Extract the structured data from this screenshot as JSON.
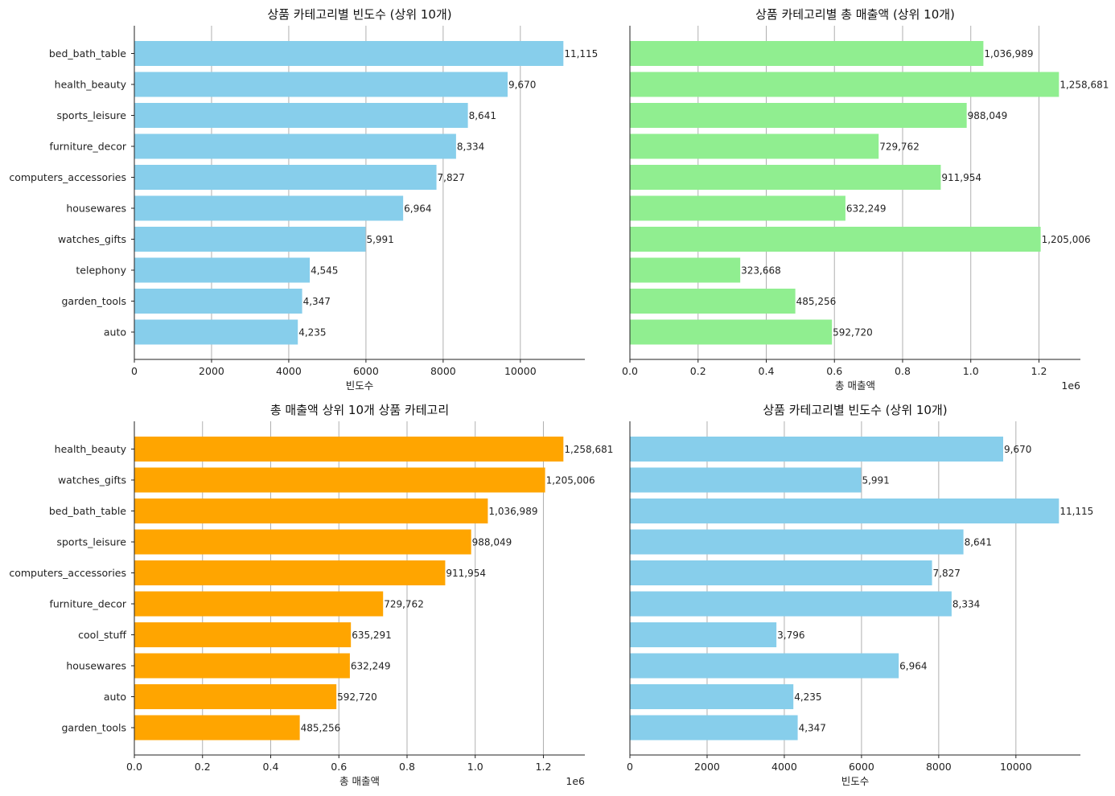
{
  "chart_data": [
    {
      "type": "bar",
      "orientation": "horizontal",
      "title": "상품 카테고리별 빈도수 (상위 10개)",
      "xlabel": "빈도수",
      "ylabel": "",
      "color": "#87CEEB",
      "xlim": [
        0,
        11671
      ],
      "xticks": [
        0,
        2000,
        4000,
        6000,
        8000,
        10000
      ],
      "tick_labels": [
        "0",
        "2000",
        "4000",
        "6000",
        "8000",
        "10000"
      ],
      "offset_text": "",
      "grid": "x",
      "categories": [
        "bed_bath_table",
        "health_beauty",
        "sports_leisure",
        "furniture_decor",
        "computers_accessories",
        "housewares",
        "watches_gifts",
        "telephony",
        "garden_tools",
        "auto"
      ],
      "values": [
        11115,
        9670,
        8641,
        8334,
        7827,
        6964,
        5991,
        4545,
        4347,
        4235
      ],
      "value_labels": [
        "11,115",
        "9,670",
        "8,641",
        "8,334",
        "7,827",
        "6,964",
        "5,991",
        "4,545",
        "4,347",
        "4,235"
      ],
      "show_category_labels": true
    },
    {
      "type": "bar",
      "orientation": "horizontal",
      "title": "상품 카테고리별 총 매출액 (상위 10개)",
      "xlabel": "총 매출액",
      "ylabel": "",
      "color": "#90EE90",
      "xlim": [
        0,
        1321615
      ],
      "xticks": [
        0,
        200000,
        400000,
        600000,
        800000,
        1000000,
        1200000
      ],
      "tick_labels": [
        "0.0",
        "0.2",
        "0.4",
        "0.6",
        "0.8",
        "1.0",
        "1.2"
      ],
      "offset_text": "1e6",
      "grid": "x",
      "categories": [
        "bed_bath_table",
        "health_beauty",
        "sports_leisure",
        "furniture_decor",
        "computers_accessories",
        "housewares",
        "watches_gifts",
        "telephony",
        "garden_tools",
        "auto"
      ],
      "values": [
        1036989,
        1258681,
        988049,
        729762,
        911954,
        632249,
        1205006,
        323668,
        485256,
        592720
      ],
      "value_labels": [
        "1,036,989",
        "1,258,681",
        "988,049",
        "729,762",
        "911,954",
        "632,249",
        "1,205,006",
        "323,668",
        "485,256",
        "592,720"
      ],
      "show_category_labels": false
    },
    {
      "type": "bar",
      "orientation": "horizontal",
      "title": "총 매출액 상위 10개 상품 카테고리",
      "xlabel": "총 매출액",
      "ylabel": "",
      "color": "#FFA500",
      "xlim": [
        0,
        1321615
      ],
      "xticks": [
        0,
        200000,
        400000,
        600000,
        800000,
        1000000,
        1200000
      ],
      "tick_labels": [
        "0.0",
        "0.2",
        "0.4",
        "0.6",
        "0.8",
        "1.0",
        "1.2"
      ],
      "offset_text": "1e6",
      "grid": "x",
      "categories": [
        "health_beauty",
        "watches_gifts",
        "bed_bath_table",
        "sports_leisure",
        "computers_accessories",
        "furniture_decor",
        "cool_stuff",
        "housewares",
        "auto",
        "garden_tools"
      ],
      "values": [
        1258681,
        1205006,
        1036989,
        988049,
        911954,
        729762,
        635291,
        632249,
        592720,
        485256
      ],
      "value_labels": [
        "1,258,681",
        "1,205,006",
        "1,036,989",
        "988,049",
        "911,954",
        "729,762",
        "635,291",
        "632,249",
        "592,720",
        "485,256"
      ],
      "show_category_labels": true
    },
    {
      "type": "bar",
      "orientation": "horizontal",
      "title": "상품 카테고리별 빈도수 (상위 10개)",
      "xlabel": "빈도수",
      "ylabel": "",
      "color": "#87CEEB",
      "xlim": [
        0,
        11671
      ],
      "xticks": [
        0,
        2000,
        4000,
        6000,
        8000,
        10000
      ],
      "tick_labels": [
        "0",
        "2000",
        "4000",
        "6000",
        "8000",
        "10000"
      ],
      "offset_text": "",
      "grid": "x",
      "categories": [
        "health_beauty",
        "watches_gifts",
        "bed_bath_table",
        "sports_leisure",
        "computers_accessories",
        "furniture_decor",
        "cool_stuff",
        "housewares",
        "auto",
        "garden_tools"
      ],
      "values": [
        9670,
        5991,
        11115,
        8641,
        7827,
        8334,
        3796,
        6964,
        4235,
        4347
      ],
      "value_labels": [
        "9,670",
        "5,991",
        "11,115",
        "8,641",
        "7,827",
        "8,334",
        "3,796",
        "6,964",
        "4,235",
        "4,347"
      ],
      "show_category_labels": false
    }
  ]
}
